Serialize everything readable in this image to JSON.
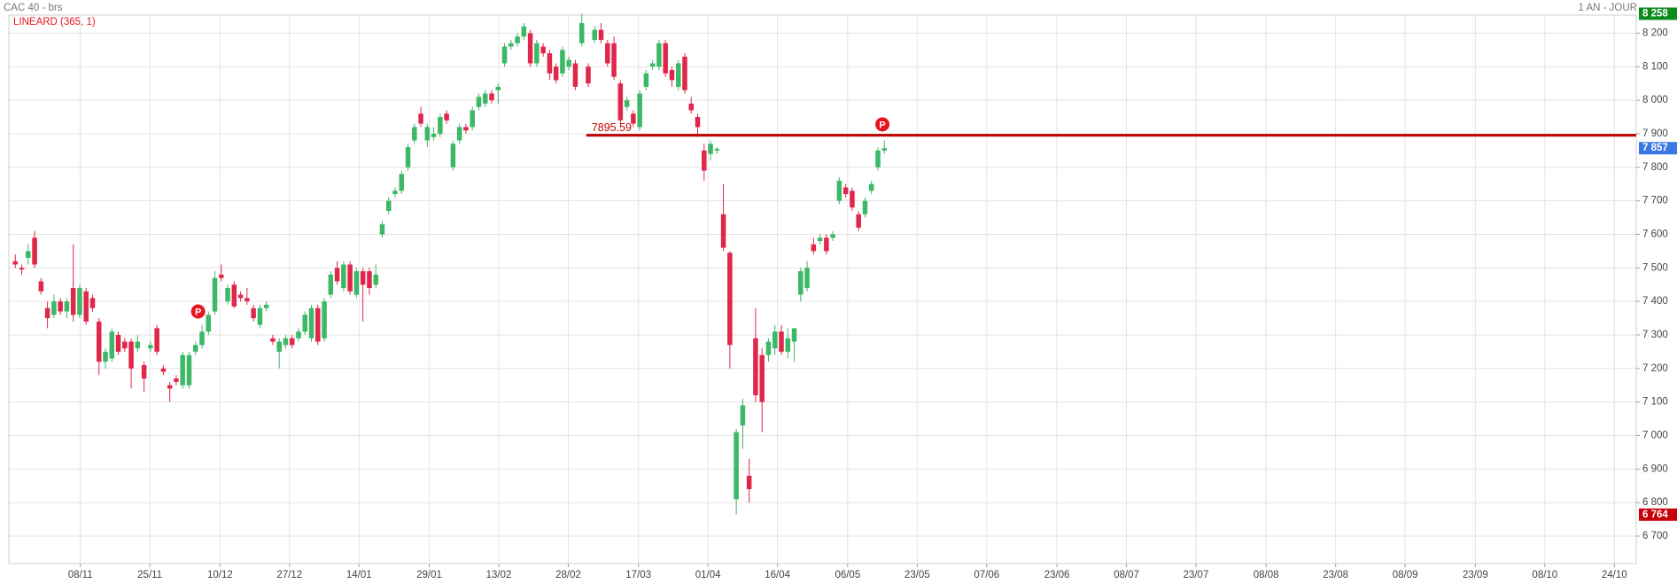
{
  "chart_data": {
    "type": "candlestick",
    "title": "CAC 40 - brs",
    "subtitle": "1 AN - JOUR",
    "indicator": "LINEARD (365, 1)",
    "up_color": "#3cb867",
    "down_color": "#e0264a",
    "grid": true,
    "xlim": [
      -1.0,
      251.8
    ],
    "xticks": [
      {
        "value": 10.1,
        "label": "08/11"
      },
      {
        "value": 20.9,
        "label": "25/11"
      },
      {
        "value": 31.8,
        "label": "10/12"
      },
      {
        "value": 42.6,
        "label": "27/12"
      },
      {
        "value": 53.4,
        "label": "14/01"
      },
      {
        "value": 64.3,
        "label": "29/01"
      },
      {
        "value": 75.1,
        "label": "13/02"
      },
      {
        "value": 85.9,
        "label": "28/02"
      },
      {
        "value": 96.8,
        "label": "17/03"
      },
      {
        "value": 107.6,
        "label": "01/04"
      },
      {
        "value": 118.4,
        "label": "16/04"
      },
      {
        "value": 129.3,
        "label": "06/05"
      },
      {
        "value": 140.1,
        "label": "23/05"
      },
      {
        "value": 150.9,
        "label": "07/06"
      },
      {
        "value": 161.8,
        "label": "23/06"
      },
      {
        "value": 172.6,
        "label": "08/07"
      },
      {
        "value": 183.4,
        "label": "23/07"
      },
      {
        "value": 194.3,
        "label": "08/08"
      },
      {
        "value": 205.1,
        "label": "23/08"
      },
      {
        "value": 215.9,
        "label": "08/09"
      },
      {
        "value": 226.8,
        "label": "23/09"
      },
      {
        "value": 237.6,
        "label": "08/10"
      },
      {
        "value": 248.4,
        "label": "24/10"
      }
    ],
    "ylim": [
      6618,
      8254
    ],
    "yticks": [
      {
        "value": 6700,
        "label": "6 700"
      },
      {
        "value": 6800,
        "label": "6 800"
      },
      {
        "value": 6900,
        "label": "6 900"
      },
      {
        "value": 7000,
        "label": "7 000"
      },
      {
        "value": 7100,
        "label": "7 100"
      },
      {
        "value": 7200,
        "label": "7 200"
      },
      {
        "value": 7300,
        "label": "7 300"
      },
      {
        "value": 7400,
        "label": "7 400"
      },
      {
        "value": 7500,
        "label": "7 500"
      },
      {
        "value": 7600,
        "label": "7 600"
      },
      {
        "value": 7700,
        "label": "7 700"
      },
      {
        "value": 7800,
        "label": "7 800"
      },
      {
        "value": 7900,
        "label": "7 900"
      },
      {
        "value": 8000,
        "label": "8 000"
      },
      {
        "value": 8100,
        "label": "8 100"
      },
      {
        "value": 8200,
        "label": "8 200"
      }
    ],
    "open": [
      7520,
      7500,
      7530,
      7590,
      7460,
      7380,
      7360,
      7400,
      7370,
      7440,
      7360,
      7430,
      7410,
      7340,
      7220,
      7230,
      7300,
      7280,
      7280,
      7260,
      7210,
      7260,
      7320,
      7200,
      7150,
      7170,
      7150,
      7150,
      7250,
      7270,
      7310,
      7370,
      7480,
      7400,
      7450,
      7420,
      7410,
      7380,
      7330,
      7380,
      7290,
      7250,
      7270,
      7290,
      7290,
      7310,
      7290,
      7380,
      7290,
      7420,
      7500,
      7440,
      7510,
      7420,
      7490,
      7490,
      7450,
      7600,
      7670,
      7720,
      7730,
      7800,
      7880,
      7960,
      7880,
      7890,
      7900,
      7960,
      7800,
      7880,
      7920,
      7920,
      7980,
      7990,
      8020,
      8030,
      8110,
      8160,
      8170,
      8190,
      8200,
      8110,
      8160,
      8140,
      8100,
      8080,
      8100,
      8110,
      8170,
      8100,
      8180,
      8210,
      8170,
      8170,
      8050,
      7980,
      7960,
      7920,
      8040,
      8100,
      8100,
      8170,
      8090,
      8040,
      8130,
      7990,
      7950,
      7850,
      7840,
      7850,
      7660,
      7545,
      6810,
      7030,
      6880,
      7290,
      7240,
      7240,
      7260,
      7310,
      7250,
      7280,
      7420,
      7440,
      7570,
      7580,
      7590,
      7590,
      7700,
      7740,
      7730,
      7660,
      7660,
      7730,
      7800,
      7850
    ],
    "high": [
      7540,
      7510,
      7570,
      7610,
      7470,
      7400,
      7420,
      7410,
      7410,
      7570,
      7450,
      7440,
      7420,
      7350,
      7260,
      7320,
      7310,
      7290,
      7290,
      7300,
      7220,
      7280,
      7330,
      7210,
      7160,
      7180,
      7250,
      7250,
      7280,
      7330,
      7370,
      7490,
      7510,
      7450,
      7460,
      7430,
      7440,
      7390,
      7390,
      7400,
      7300,
      7290,
      7300,
      7300,
      7320,
      7370,
      7390,
      7390,
      7410,
      7490,
      7520,
      7520,
      7520,
      7500,
      7500,
      7500,
      7510,
      7640,
      7710,
      7740,
      7790,
      7870,
      7930,
      7980,
      7930,
      7920,
      7960,
      7970,
      7880,
      7930,
      7930,
      7980,
      8020,
      8030,
      8030,
      8050,
      8170,
      8180,
      8200,
      8230,
      8210,
      8180,
      8170,
      8150,
      8110,
      8160,
      8130,
      8120,
      8258,
      8110,
      8220,
      8230,
      8180,
      8190,
      8060,
      8010,
      7970,
      8030,
      8090,
      8120,
      8180,
      8180,
      8100,
      8120,
      8140,
      8010,
      7960,
      7870,
      7880,
      7860,
      7750,
      7550,
      7020,
      7110,
      6930,
      7380,
      7260,
      7290,
      7330,
      7330,
      7320,
      7320,
      7500,
      7520,
      7590,
      7600,
      7600,
      7610,
      7770,
      7750,
      7740,
      7670,
      7710,
      7760,
      7860,
      7880
    ],
    "low": [
      7500,
      7480,
      7510,
      7500,
      7420,
      7320,
      7350,
      7360,
      7350,
      7340,
      7350,
      7330,
      7370,
      7180,
      7200,
      7220,
      7240,
      7250,
      7140,
      7250,
      7130,
      7250,
      7240,
      7180,
      7100,
      7150,
      7140,
      7140,
      7240,
      7260,
      7300,
      7360,
      7460,
      7390,
      7380,
      7400,
      7390,
      7340,
      7320,
      7370,
      7270,
      7200,
      7260,
      7260,
      7280,
      7300,
      7280,
      7270,
      7280,
      7410,
      7450,
      7430,
      7420,
      7410,
      7340,
      7420,
      7440,
      7590,
      7660,
      7710,
      7720,
      7790,
      7870,
      7920,
      7860,
      7880,
      7890,
      7930,
      7790,
      7870,
      7900,
      7910,
      7970,
      7980,
      7990,
      7990,
      8100,
      8150,
      8160,
      8180,
      8100,
      8100,
      8130,
      8060,
      8050,
      8070,
      8090,
      8030,
      8160,
      8040,
      8170,
      8170,
      8100,
      8060,
      7930,
      7970,
      7920,
      7910,
      8030,
      8090,
      8090,
      8070,
      8040,
      8030,
      8020,
      7960,
      7890,
      7760,
      7820,
      7840,
      7550,
      7200,
      6764,
      6960,
      6800,
      7100,
      7010,
      7220,
      7240,
      7240,
      7230,
      7220,
      7400,
      7430,
      7540,
      7570,
      7540,
      7580,
      7690,
      7710,
      7670,
      7610,
      7650,
      7720,
      7790,
      7840
    ],
    "close": [
      7510,
      7495,
      7550,
      7510,
      7430,
      7350,
      7400,
      7370,
      7400,
      7360,
      7440,
      7340,
      7380,
      7220,
      7250,
      7310,
      7250,
      7260,
      7200,
      7280,
      7170,
      7270,
      7250,
      7190,
      7140,
      7160,
      7240,
      7240,
      7270,
      7310,
      7360,
      7470,
      7470,
      7440,
      7385,
      7410,
      7400,
      7350,
      7380,
      7390,
      7280,
      7280,
      7290,
      7270,
      7310,
      7360,
      7380,
      7280,
      7400,
      7480,
      7460,
      7510,
      7430,
      7490,
      7450,
      7440,
      7480,
      7630,
      7700,
      7730,
      7780,
      7860,
      7920,
      7930,
      7920,
      7900,
      7950,
      7940,
      7870,
      7920,
      7910,
      7970,
      8010,
      8020,
      8000,
      8040,
      8160,
      8170,
      8190,
      8220,
      8110,
      8170,
      8140,
      8080,
      8060,
      8150,
      8120,
      8040,
      8230,
      8050,
      8210,
      8180,
      8110,
      8070,
      7940,
      8000,
      7930,
      8020,
      8080,
      8110,
      8170,
      8080,
      8060,
      8110,
      8030,
      7970,
      7920,
      7790,
      7870,
      7855,
      7560,
      7270,
      7010,
      7090,
      6840,
      7120,
      7100,
      7280,
      7310,
      7250,
      7290,
      7320,
      7490,
      7500,
      7550,
      7590,
      7550,
      7600,
      7760,
      7720,
      7680,
      7620,
      7700,
      7750,
      7850,
      7857
    ],
    "hline": {
      "value": 7895.59,
      "label": "7895.59",
      "start": 88.7,
      "color": "#c00000"
    },
    "markers": [
      {
        "x": 28.4,
        "y": 7370,
        "label": "P",
        "color": "#e8141e"
      },
      {
        "x": 134.7,
        "y": 7928,
        "label": "P",
        "color": "#e8141e"
      }
    ],
    "badges": [
      {
        "value": 8258,
        "label": "8 258",
        "color": "#0b8a1e"
      },
      {
        "value": 7857,
        "label": "7 857",
        "color": "#3a78e6"
      },
      {
        "value": 6764,
        "label": "6 764",
        "color": "#c8000a"
      }
    ]
  }
}
